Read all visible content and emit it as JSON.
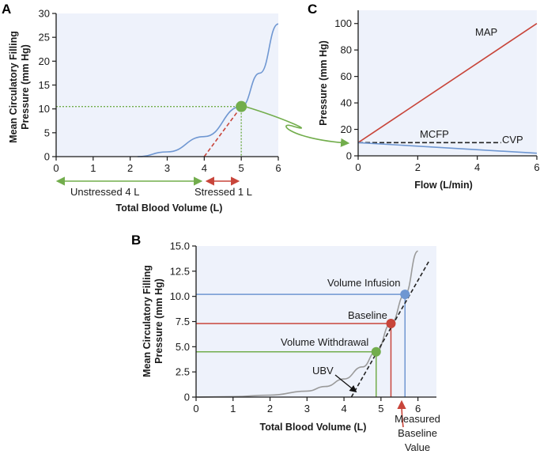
{
  "colors": {
    "plot_bg": "#eef2fb",
    "blue": "#6f97d2",
    "red": "#c8453a",
    "green": "#72ad4c",
    "gray": "#9a9a9a",
    "black": "#222222"
  },
  "chart_data": [
    {
      "panel": "A",
      "type": "line",
      "xlabel": "Total Blood Volume (L)",
      "ylabel": [
        "Mean Circulatory Filling",
        "Pressure (mm Hg)"
      ],
      "xlim": [
        0,
        6
      ],
      "ylim": [
        0,
        30
      ],
      "xticks": [
        0,
        1,
        2,
        3,
        4,
        5,
        6
      ],
      "yticks": [
        0,
        5,
        10,
        15,
        20,
        25,
        30
      ],
      "series": [
        {
          "name": "compliance curve",
          "x": [
            2.2,
            3.0,
            4.0,
            5.0,
            5.5,
            6.0
          ],
          "y": [
            0,
            1.0,
            4.2,
            10.5,
            17.5,
            27.8
          ]
        },
        {
          "name": "stressed volume tangent",
          "x": [
            4.0,
            5.0
          ],
          "y": [
            0,
            10.5
          ]
        }
      ],
      "point": {
        "x": 5,
        "y": 10.5
      },
      "annotations": {
        "unstressed": "Unstressed 4 L",
        "stressed": "Stressed 1 L"
      }
    },
    {
      "panel": "C",
      "type": "line",
      "xlabel": "Flow (L/min)",
      "ylabel": "Pressure (mm Hg)",
      "xlim": [
        0,
        6
      ],
      "ylim": [
        0,
        110
      ],
      "xticks": [
        0,
        2,
        4,
        6
      ],
      "yticks": [
        0,
        20,
        40,
        60,
        80,
        100
      ],
      "series": [
        {
          "name": "MAP",
          "x": [
            0,
            6
          ],
          "y": [
            10,
            100
          ]
        },
        {
          "name": "MCFP",
          "x": [
            0,
            4.8
          ],
          "y": [
            10,
            10
          ]
        },
        {
          "name": "CVP",
          "x": [
            0,
            6
          ],
          "y": [
            10,
            2
          ]
        }
      ]
    },
    {
      "panel": "B",
      "type": "line",
      "xlabel": "Total Blood Volume (L)",
      "ylabel": [
        "Mean Circulatory Filling",
        "Pressure (mm Hg)"
      ],
      "xlim": [
        0,
        6.5
      ],
      "ylim": [
        0,
        15
      ],
      "xticks": [
        0,
        1,
        2,
        3,
        4,
        5,
        6
      ],
      "yticks": [
        0,
        2.5,
        5.0,
        7.5,
        10.0,
        12.5,
        15.0
      ],
      "ytick_labels": [
        "0",
        "2.5",
        "5.0",
        "7.5",
        "10.0",
        "12.5",
        "15.0"
      ],
      "series": [
        {
          "name": "compliance curve",
          "x": [
            0,
            1,
            2,
            3,
            3.5,
            4,
            4.5,
            4.87,
            5.27,
            5.65,
            6.0
          ],
          "y": [
            0,
            0.05,
            0.2,
            0.6,
            1.05,
            1.8,
            3.0,
            4.5,
            7.3,
            10.2,
            14.5
          ]
        },
        {
          "name": "UBV tangent",
          "x": [
            4.2,
            6.3
          ],
          "y": [
            0,
            13.5
          ]
        }
      ],
      "points": [
        {
          "name": "Volume Withdrawal",
          "x": 4.87,
          "y": 4.5
        },
        {
          "name": "Baseline",
          "x": 5.27,
          "y": 7.3
        },
        {
          "name": "Volume Infusion",
          "x": 5.65,
          "y": 10.2
        }
      ],
      "annotations": {
        "ubv": "UBV",
        "measured": [
          "Measured",
          "Baseline",
          "Value"
        ]
      }
    }
  ],
  "labels": {
    "panel_a": "A",
    "panel_b": "B",
    "panel_c": "C"
  }
}
